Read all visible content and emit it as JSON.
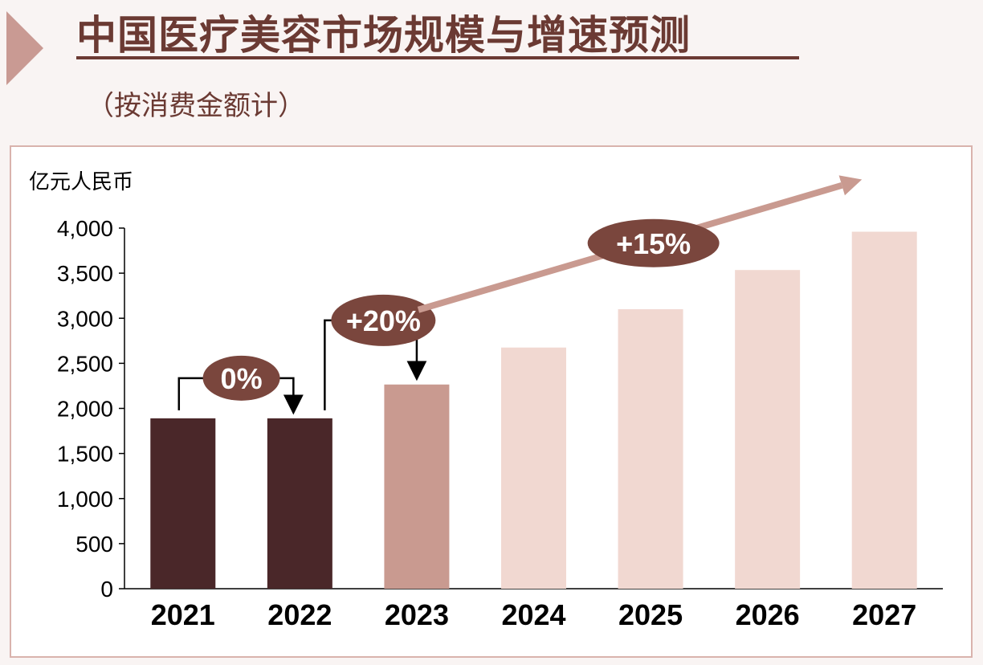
{
  "header": {
    "title": "中国医疗美容市场规模与增速预测",
    "subtitle": "（按消费金额计）"
  },
  "colors": {
    "actual": "#4a2729",
    "estimate": "#c99a90",
    "forecast": "#f1d8d1",
    "badge": "#7a463d",
    "trend_arrow": "#c99a90",
    "title": "#6b3a33"
  },
  "chart_data": {
    "type": "bar",
    "ylabel": "亿元人民币",
    "ylim": [
      0,
      4000
    ],
    "yticks": [
      0,
      500,
      1000,
      1500,
      2000,
      2500,
      3000,
      3500,
      4000
    ],
    "ytick_labels": [
      "0",
      "500",
      "1,000",
      "1,500",
      "2,000",
      "2,500",
      "3,000",
      "3,500",
      "4,000"
    ],
    "categories": [
      "2021",
      "2022",
      "2023",
      "2024",
      "2025",
      "2026",
      "2027"
    ],
    "values": [
      1890,
      1890,
      2265,
      2675,
      3100,
      3535,
      3960
    ],
    "bar_styles": [
      "actual",
      "actual",
      "estimate",
      "forecast",
      "forecast",
      "forecast",
      "forecast"
    ],
    "annotations": [
      {
        "label": "0%",
        "from": "2021",
        "to": "2022"
      },
      {
        "label": "+20%",
        "from": "2022",
        "to": "2023"
      },
      {
        "label": "+15%",
        "from": "2023",
        "to": "2027"
      }
    ]
  }
}
